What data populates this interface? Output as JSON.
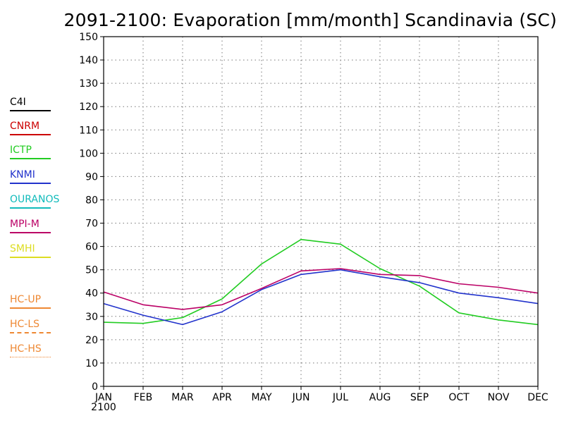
{
  "chart_data": {
    "type": "line",
    "title": "2091-2100: Evaporation [mm/month] Scandinavia (SC)",
    "xlabel": "",
    "ylabel": "",
    "categories": [
      "JAN",
      "FEB",
      "MAR",
      "APR",
      "MAY",
      "JUN",
      "JUL",
      "AUG",
      "SEP",
      "OCT",
      "NOV",
      "DEC"
    ],
    "x_sublabel": "2100",
    "ylim": [
      0,
      150
    ],
    "yticks": [
      0,
      10,
      20,
      30,
      40,
      50,
      60,
      70,
      80,
      90,
      100,
      110,
      120,
      130,
      140,
      150
    ],
    "grid": true,
    "legend_position": "left",
    "legend": [
      {
        "name": "C4I",
        "color": "#000000",
        "style": "solid"
      },
      {
        "name": "CNRM",
        "color": "#cc0000",
        "style": "solid"
      },
      {
        "name": "ICTP",
        "color": "#22cc22",
        "style": "solid"
      },
      {
        "name": "KNMI",
        "color": "#2233cc",
        "style": "solid"
      },
      {
        "name": "OURANOS",
        "color": "#11bbbb",
        "style": "solid"
      },
      {
        "name": "MPI-M",
        "color": "#bb0066",
        "style": "solid"
      },
      {
        "name": "SMHI",
        "color": "#dddd22",
        "style": "solid"
      },
      {
        "name": "HC-UP",
        "color": "#ee8833",
        "style": "solid"
      },
      {
        "name": "HC-LS",
        "color": "#ee8833",
        "style": "dashed"
      },
      {
        "name": "HC-HS",
        "color": "#ee8833",
        "style": "dotted"
      }
    ],
    "series": [
      {
        "name": "ICTP",
        "color": "#22cc22",
        "values": [
          27.5,
          27,
          29.5,
          37.5,
          52.5,
          63,
          61,
          50.5,
          43,
          31.5,
          28.5,
          26.5
        ]
      },
      {
        "name": "KNMI",
        "color": "#2233cc",
        "values": [
          35.5,
          30.5,
          26.5,
          32,
          41.5,
          48,
          50,
          47,
          44.5,
          40,
          38,
          35.5
        ]
      },
      {
        "name": "MPI-M",
        "color": "#bb0066",
        "values": [
          40.5,
          35,
          33,
          35,
          42,
          49.5,
          50.5,
          48,
          47.5,
          44,
          42.5,
          40
        ]
      }
    ]
  }
}
